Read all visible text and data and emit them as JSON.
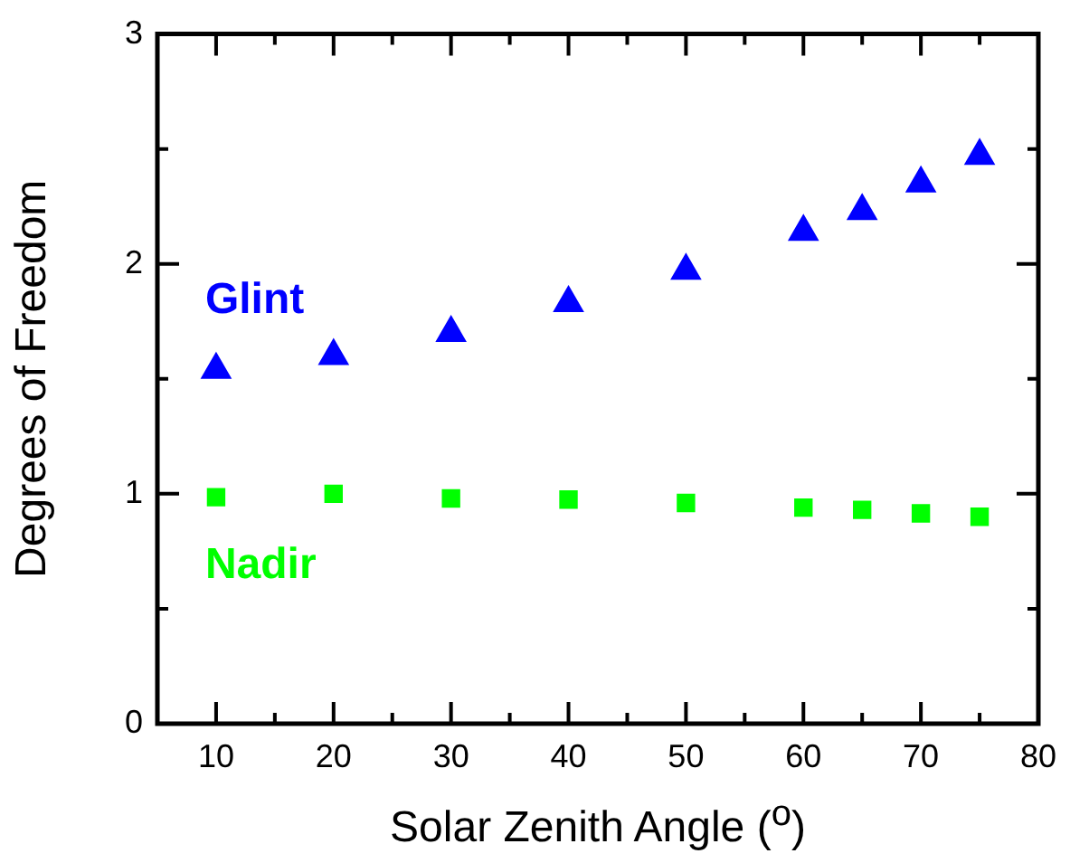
{
  "chart_data": {
    "type": "scatter",
    "xlabel": "Solar Zenith Angle ($^{o}$)",
    "ylabel": "Degrees of Freedom",
    "x": [
      10,
      20,
      30,
      40,
      50,
      60,
      65,
      70,
      75
    ],
    "series": [
      {
        "name": "Glint",
        "color": "#0000ff",
        "marker": "triangle",
        "values": [
          1.54,
          1.6,
          1.7,
          1.83,
          1.97,
          2.14,
          2.23,
          2.35,
          2.47
        ]
      },
      {
        "name": "Nadir",
        "color": "#00ff00",
        "marker": "square",
        "values": [
          0.985,
          1.0,
          0.98,
          0.975,
          0.96,
          0.94,
          0.93,
          0.915,
          0.9
        ]
      }
    ],
    "xlim": [
      5,
      80
    ],
    "xticks": [
      10,
      {
        "value": 15,
        "label": null
      },
      20,
      {
        "value": 25,
        "label": null
      },
      30,
      {
        "value": 35,
        "label": null
      },
      40,
      {
        "value": 45,
        "label": null
      },
      50,
      {
        "value": 55,
        "label": null
      },
      60,
      {
        "value": 65,
        "label": null
      },
      70,
      {
        "value": 75,
        "label": null
      },
      80
    ],
    "ylim": [
      0,
      3
    ],
    "yticks": [
      0,
      {
        "value": 0.5,
        "label": null
      },
      1,
      {
        "value": 1.5,
        "label": null
      },
      2,
      {
        "value": 2.5,
        "label": null
      },
      3
    ],
    "grid": false,
    "legend": false
  }
}
